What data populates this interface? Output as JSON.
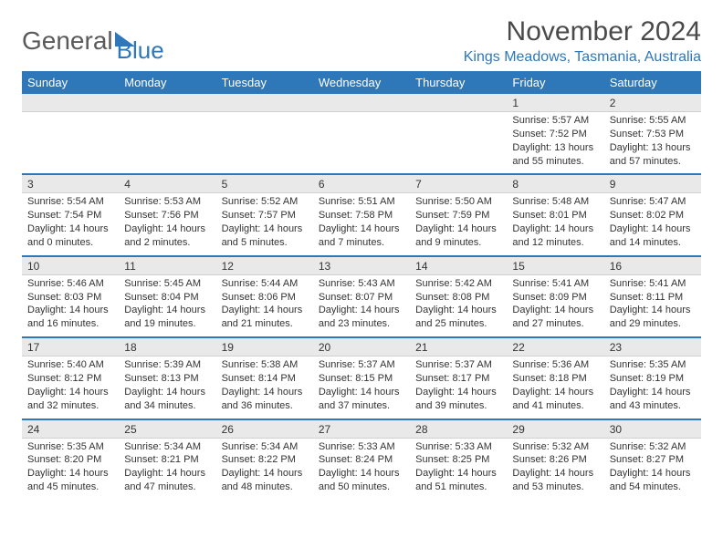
{
  "logo": {
    "text1": "General",
    "text2": "Blue"
  },
  "title": "November 2024",
  "location": "Kings Meadows, Tasmania, Australia",
  "colors": {
    "accent": "#2e77b8",
    "daynum_bg": "#e9e9e9",
    "text": "#333333",
    "title_text": "#4a4a4a"
  },
  "dow": [
    "Sunday",
    "Monday",
    "Tuesday",
    "Wednesday",
    "Thursday",
    "Friday",
    "Saturday"
  ],
  "weeks": [
    {
      "nums": [
        "",
        "",
        "",
        "",
        "",
        "1",
        "2"
      ],
      "cells": [
        {
          "sunrise": "",
          "sunset": "",
          "daylight": ""
        },
        {
          "sunrise": "",
          "sunset": "",
          "daylight": ""
        },
        {
          "sunrise": "",
          "sunset": "",
          "daylight": ""
        },
        {
          "sunrise": "",
          "sunset": "",
          "daylight": ""
        },
        {
          "sunrise": "",
          "sunset": "",
          "daylight": ""
        },
        {
          "sunrise": "Sunrise: 5:57 AM",
          "sunset": "Sunset: 7:52 PM",
          "daylight": "Daylight: 13 hours and 55 minutes."
        },
        {
          "sunrise": "Sunrise: 5:55 AM",
          "sunset": "Sunset: 7:53 PM",
          "daylight": "Daylight: 13 hours and 57 minutes."
        }
      ]
    },
    {
      "nums": [
        "3",
        "4",
        "5",
        "6",
        "7",
        "8",
        "9"
      ],
      "cells": [
        {
          "sunrise": "Sunrise: 5:54 AM",
          "sunset": "Sunset: 7:54 PM",
          "daylight": "Daylight: 14 hours and 0 minutes."
        },
        {
          "sunrise": "Sunrise: 5:53 AM",
          "sunset": "Sunset: 7:56 PM",
          "daylight": "Daylight: 14 hours and 2 minutes."
        },
        {
          "sunrise": "Sunrise: 5:52 AM",
          "sunset": "Sunset: 7:57 PM",
          "daylight": "Daylight: 14 hours and 5 minutes."
        },
        {
          "sunrise": "Sunrise: 5:51 AM",
          "sunset": "Sunset: 7:58 PM",
          "daylight": "Daylight: 14 hours and 7 minutes."
        },
        {
          "sunrise": "Sunrise: 5:50 AM",
          "sunset": "Sunset: 7:59 PM",
          "daylight": "Daylight: 14 hours and 9 minutes."
        },
        {
          "sunrise": "Sunrise: 5:48 AM",
          "sunset": "Sunset: 8:01 PM",
          "daylight": "Daylight: 14 hours and 12 minutes."
        },
        {
          "sunrise": "Sunrise: 5:47 AM",
          "sunset": "Sunset: 8:02 PM",
          "daylight": "Daylight: 14 hours and 14 minutes."
        }
      ]
    },
    {
      "nums": [
        "10",
        "11",
        "12",
        "13",
        "14",
        "15",
        "16"
      ],
      "cells": [
        {
          "sunrise": "Sunrise: 5:46 AM",
          "sunset": "Sunset: 8:03 PM",
          "daylight": "Daylight: 14 hours and 16 minutes."
        },
        {
          "sunrise": "Sunrise: 5:45 AM",
          "sunset": "Sunset: 8:04 PM",
          "daylight": "Daylight: 14 hours and 19 minutes."
        },
        {
          "sunrise": "Sunrise: 5:44 AM",
          "sunset": "Sunset: 8:06 PM",
          "daylight": "Daylight: 14 hours and 21 minutes."
        },
        {
          "sunrise": "Sunrise: 5:43 AM",
          "sunset": "Sunset: 8:07 PM",
          "daylight": "Daylight: 14 hours and 23 minutes."
        },
        {
          "sunrise": "Sunrise: 5:42 AM",
          "sunset": "Sunset: 8:08 PM",
          "daylight": "Daylight: 14 hours and 25 minutes."
        },
        {
          "sunrise": "Sunrise: 5:41 AM",
          "sunset": "Sunset: 8:09 PM",
          "daylight": "Daylight: 14 hours and 27 minutes."
        },
        {
          "sunrise": "Sunrise: 5:41 AM",
          "sunset": "Sunset: 8:11 PM",
          "daylight": "Daylight: 14 hours and 29 minutes."
        }
      ]
    },
    {
      "nums": [
        "17",
        "18",
        "19",
        "20",
        "21",
        "22",
        "23"
      ],
      "cells": [
        {
          "sunrise": "Sunrise: 5:40 AM",
          "sunset": "Sunset: 8:12 PM",
          "daylight": "Daylight: 14 hours and 32 minutes."
        },
        {
          "sunrise": "Sunrise: 5:39 AM",
          "sunset": "Sunset: 8:13 PM",
          "daylight": "Daylight: 14 hours and 34 minutes."
        },
        {
          "sunrise": "Sunrise: 5:38 AM",
          "sunset": "Sunset: 8:14 PM",
          "daylight": "Daylight: 14 hours and 36 minutes."
        },
        {
          "sunrise": "Sunrise: 5:37 AM",
          "sunset": "Sunset: 8:15 PM",
          "daylight": "Daylight: 14 hours and 37 minutes."
        },
        {
          "sunrise": "Sunrise: 5:37 AM",
          "sunset": "Sunset: 8:17 PM",
          "daylight": "Daylight: 14 hours and 39 minutes."
        },
        {
          "sunrise": "Sunrise: 5:36 AM",
          "sunset": "Sunset: 8:18 PM",
          "daylight": "Daylight: 14 hours and 41 minutes."
        },
        {
          "sunrise": "Sunrise: 5:35 AM",
          "sunset": "Sunset: 8:19 PM",
          "daylight": "Daylight: 14 hours and 43 minutes."
        }
      ]
    },
    {
      "nums": [
        "24",
        "25",
        "26",
        "27",
        "28",
        "29",
        "30"
      ],
      "cells": [
        {
          "sunrise": "Sunrise: 5:35 AM",
          "sunset": "Sunset: 8:20 PM",
          "daylight": "Daylight: 14 hours and 45 minutes."
        },
        {
          "sunrise": "Sunrise: 5:34 AM",
          "sunset": "Sunset: 8:21 PM",
          "daylight": "Daylight: 14 hours and 47 minutes."
        },
        {
          "sunrise": "Sunrise: 5:34 AM",
          "sunset": "Sunset: 8:22 PM",
          "daylight": "Daylight: 14 hours and 48 minutes."
        },
        {
          "sunrise": "Sunrise: 5:33 AM",
          "sunset": "Sunset: 8:24 PM",
          "daylight": "Daylight: 14 hours and 50 minutes."
        },
        {
          "sunrise": "Sunrise: 5:33 AM",
          "sunset": "Sunset: 8:25 PM",
          "daylight": "Daylight: 14 hours and 51 minutes."
        },
        {
          "sunrise": "Sunrise: 5:32 AM",
          "sunset": "Sunset: 8:26 PM",
          "daylight": "Daylight: 14 hours and 53 minutes."
        },
        {
          "sunrise": "Sunrise: 5:32 AM",
          "sunset": "Sunset: 8:27 PM",
          "daylight": "Daylight: 14 hours and 54 minutes."
        }
      ]
    }
  ]
}
